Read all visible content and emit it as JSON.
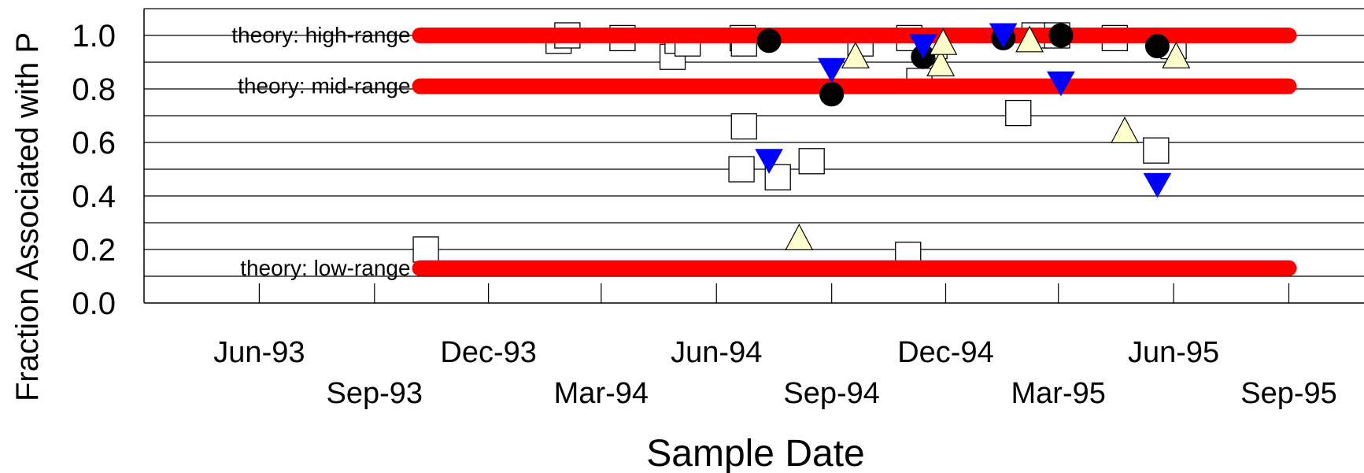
{
  "chart_data": {
    "type": "scatter",
    "title": "",
    "xlabel": "Sample Date",
    "ylabel": "Fraction Associated with P",
    "xlim": [
      "1993-03-01",
      "1995-10-31"
    ],
    "ylim": [
      0,
      1.1
    ],
    "grid": true,
    "y_ticks": [
      {
        "value": 0.0,
        "label": "0.0"
      },
      {
        "value": 0.2,
        "label": "0.2"
      },
      {
        "value": 0.4,
        "label": "0.4"
      },
      {
        "value": 0.6,
        "label": "0.6"
      },
      {
        "value": 0.8,
        "label": "0.8"
      },
      {
        "value": 1.0,
        "label": "1.0"
      }
    ],
    "y_gridlines": [
      0.1,
      0.2,
      0.3,
      0.4,
      0.5,
      0.6,
      0.7,
      0.8,
      0.9,
      1.0,
      1.1
    ],
    "x_ticks": [
      {
        "date": "1993-06-01",
        "label": "Jun-93",
        "row": 1
      },
      {
        "date": "1993-09-01",
        "label": "Sep-93",
        "row": 2
      },
      {
        "date": "1993-12-01",
        "label": "Dec-93",
        "row": 1
      },
      {
        "date": "1994-03-01",
        "label": "Mar-94",
        "row": 2
      },
      {
        "date": "1994-06-01",
        "label": "Jun-94",
        "row": 1
      },
      {
        "date": "1994-09-01",
        "label": "Sep-94",
        "row": 2
      },
      {
        "date": "1994-12-01",
        "label": "Dec-94",
        "row": 1
      },
      {
        "date": "1995-03-01",
        "label": "Mar-95",
        "row": 2
      },
      {
        "date": "1995-06-01",
        "label": "Jun-95",
        "row": 1
      },
      {
        "date": "1995-09-01",
        "label": "Sep-95",
        "row": 2
      }
    ],
    "reference_lines": [
      {
        "label": "theory: high-range",
        "y": 1.0,
        "x_start": "1993-10-01",
        "x_end": "1995-09-01",
        "color": "#ff0000"
      },
      {
        "label": "theory: mid-range",
        "y": 0.81,
        "x_start": "1993-10-01",
        "x_end": "1995-09-01",
        "color": "#ff0000"
      },
      {
        "label": "theory: low-range",
        "y": 0.13,
        "x_start": "1993-10-01",
        "x_end": "1995-09-01",
        "color": "#ff0000"
      }
    ],
    "series": [
      {
        "marker": "open-square",
        "color": "#ffffff",
        "points": [
          {
            "x": "1993-10-12",
            "y": 0.2
          },
          {
            "x": "1994-01-26",
            "y": 0.98
          },
          {
            "x": "1994-02-02",
            "y": 1.0
          },
          {
            "x": "1994-03-18",
            "y": 0.99
          },
          {
            "x": "1994-04-27",
            "y": 0.92
          },
          {
            "x": "1994-05-01",
            "y": 0.98
          },
          {
            "x": "1994-05-09",
            "y": 0.97
          },
          {
            "x": "1994-06-22",
            "y": 0.99
          },
          {
            "x": "1994-06-23",
            "y": 0.97
          },
          {
            "x": "1994-06-23",
            "y": 0.66
          },
          {
            "x": "1994-06-21",
            "y": 0.5
          },
          {
            "x": "1994-07-20",
            "y": 0.47
          },
          {
            "x": "1994-08-16",
            "y": 0.53
          },
          {
            "x": "1994-09-24",
            "y": 0.97
          },
          {
            "x": "1994-11-02",
            "y": 0.99
          },
          {
            "x": "1994-11-10",
            "y": 0.83
          },
          {
            "x": "1994-11-01",
            "y": 0.18
          },
          {
            "x": "1994-11-22",
            "y": 0.96
          },
          {
            "x": "1995-01-28",
            "y": 0.71
          },
          {
            "x": "1995-02-10",
            "y": 1.0
          },
          {
            "x": "1995-02-28",
            "y": 1.0
          },
          {
            "x": "1995-04-15",
            "y": 0.99
          },
          {
            "x": "1995-05-18",
            "y": 0.57
          },
          {
            "x": "1995-06-01",
            "y": 0.96
          }
        ]
      },
      {
        "marker": "filled-circle",
        "color": "#000000",
        "points": [
          {
            "x": "1994-07-13",
            "y": 0.98
          },
          {
            "x": "1994-09-01",
            "y": 0.78
          },
          {
            "x": "1994-11-13",
            "y": 0.92
          },
          {
            "x": "1995-01-16",
            "y": 0.99
          },
          {
            "x": "1995-03-03",
            "y": 1.0
          },
          {
            "x": "1995-05-19",
            "y": 0.96
          }
        ]
      },
      {
        "marker": "filled-triangle-down",
        "color": "#0000ff",
        "points": [
          {
            "x": "1994-07-13",
            "y": 0.53
          },
          {
            "x": "1994-09-01",
            "y": 0.87
          },
          {
            "x": "1994-11-13",
            "y": 0.96
          },
          {
            "x": "1995-01-16",
            "y": 1.0
          },
          {
            "x": "1995-03-03",
            "y": 0.82
          },
          {
            "x": "1995-05-19",
            "y": 0.44
          }
        ]
      },
      {
        "marker": "open-triangle-up",
        "color": "#ffffcc",
        "points": [
          {
            "x": "1994-08-06",
            "y": 0.24
          },
          {
            "x": "1994-09-20",
            "y": 0.92
          },
          {
            "x": "1994-11-27",
            "y": 0.89
          },
          {
            "x": "1994-11-29",
            "y": 0.97
          },
          {
            "x": "1995-02-06",
            "y": 0.98
          },
          {
            "x": "1995-04-23",
            "y": 0.64
          },
          {
            "x": "1995-06-03",
            "y": 0.92
          }
        ]
      }
    ]
  }
}
